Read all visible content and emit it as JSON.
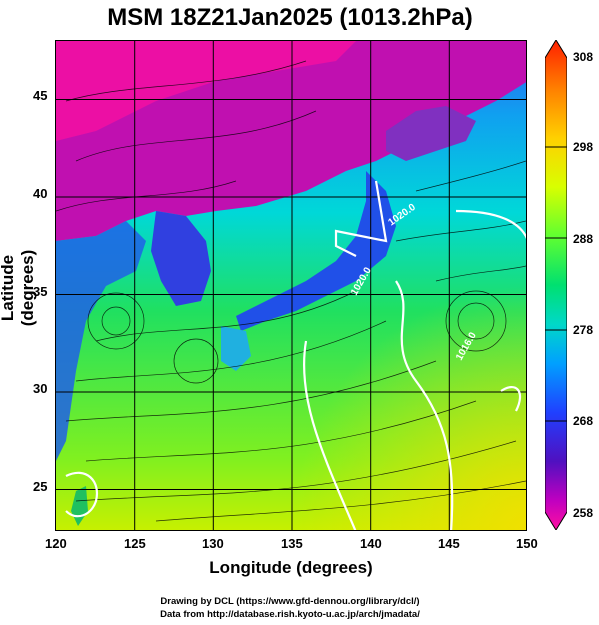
{
  "title": "MSM 18Z21Jan2025 (1013.2hPa)",
  "xlabel": "Longitude (degrees)",
  "ylabel": "Latitude  (degrees)",
  "footer": {
    "line1": "Drawing by DCL (https://www.gfd-dennou.org/library/dcl/)",
    "line2": "Data from http://database.rish.kyoto-u.ac.jp/arch/jmadata/"
  },
  "contour_labels": [
    "1020.0",
    "1020.0",
    "1016.0"
  ],
  "map": {
    "xlim": [
      120,
      150
    ],
    "ylim": [
      22.4,
      47.6
    ],
    "x_ticks": [
      "120",
      "125",
      "130",
      "135",
      "140",
      "145",
      "150"
    ],
    "y_ticks": [
      "25",
      "30",
      "35",
      "40",
      "45"
    ],
    "x_tick_values": [
      120,
      125,
      130,
      135,
      140,
      145,
      150
    ],
    "y_tick_values": [
      25,
      30,
      35,
      40,
      45
    ],
    "field": "temperature (K)",
    "overlay": "wind streamlines and isobars"
  },
  "colorbar": {
    "range": [
      258,
      308
    ],
    "labels": [
      "308",
      "298",
      "288",
      "278",
      "268",
      "258"
    ],
    "values": [
      308,
      298,
      288,
      278,
      268,
      258
    ],
    "colors_top_to_bottom": [
      "#ff2000",
      "#ff8000",
      "#ffd000",
      "#d8ff00",
      "#60ff30",
      "#00e070",
      "#00d8c8",
      "#00a0ff",
      "#2040ff",
      "#5010c0",
      "#c000c0",
      "#ff10a0"
    ]
  },
  "colors": {
    "land_north": "#d010a0",
    "sea_north": "#00a8f0",
    "sea_south": "#20e060",
    "isobar": "#ffffff"
  }
}
